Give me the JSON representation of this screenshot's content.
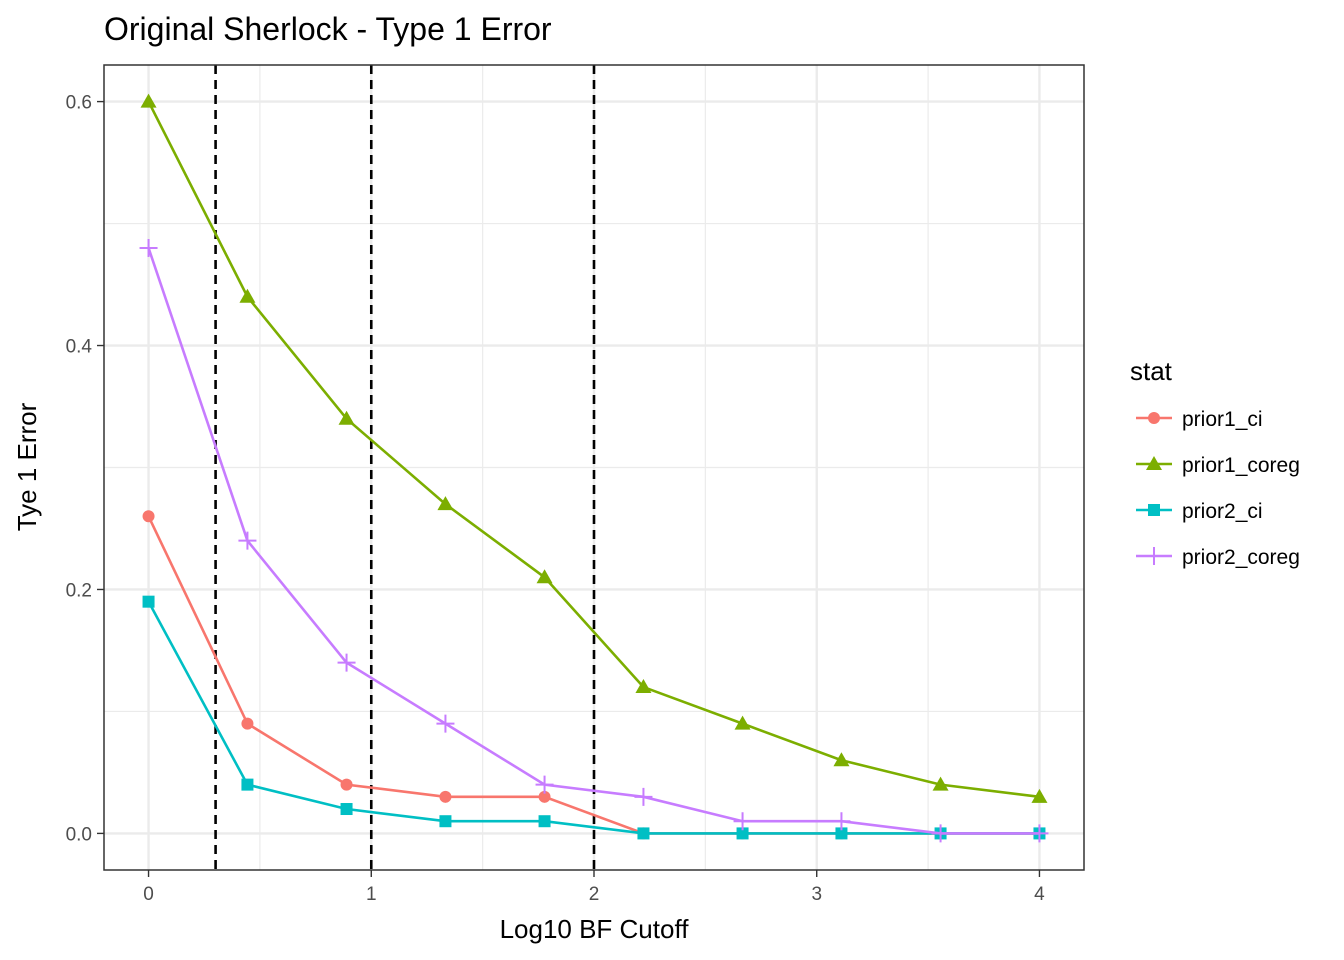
{
  "chart_data": {
    "type": "line",
    "title": "Original Sherlock - Type 1 Error",
    "xlabel": "Log10 BF Cutoff",
    "ylabel": "Tye 1 Error",
    "xlim": [
      -0.2,
      4.2
    ],
    "ylim": [
      -0.03,
      0.63
    ],
    "x_ticks": [
      0,
      1,
      2,
      3,
      4
    ],
    "y_ticks": [
      0.0,
      0.2,
      0.4,
      0.6
    ],
    "y_tick_labels": [
      "0.0",
      "0.2",
      "0.4",
      "0.6"
    ],
    "grid": true,
    "vlines": [
      0.301,
      1,
      2
    ],
    "legend_title": "stat",
    "legend_position": "right",
    "x": [
      0,
      0.444,
      0.889,
      1.333,
      1.778,
      2.222,
      2.667,
      3.111,
      3.556,
      4.0
    ],
    "series": [
      {
        "name": "prior1_ci",
        "color": "#F8766D",
        "marker": "circle",
        "values": [
          0.26,
          0.09,
          0.04,
          0.03,
          0.03,
          0.0,
          0.0,
          0.0,
          0.0,
          0.0
        ]
      },
      {
        "name": "prior1_coreg",
        "color": "#7CAE00",
        "marker": "triangle",
        "values": [
          0.6,
          0.44,
          0.34,
          0.27,
          0.21,
          0.12,
          0.09,
          0.06,
          0.04,
          0.03
        ]
      },
      {
        "name": "prior2_ci",
        "color": "#00BFC4",
        "marker": "square",
        "values": [
          0.19,
          0.04,
          0.02,
          0.01,
          0.01,
          0.0,
          0.0,
          0.0,
          0.0,
          0.0
        ]
      },
      {
        "name": "prior2_coreg",
        "color": "#C77CFF",
        "marker": "plus",
        "values": [
          0.48,
          0.24,
          0.14,
          0.09,
          0.04,
          0.03,
          0.01,
          0.01,
          0.0,
          0.0
        ]
      }
    ]
  }
}
